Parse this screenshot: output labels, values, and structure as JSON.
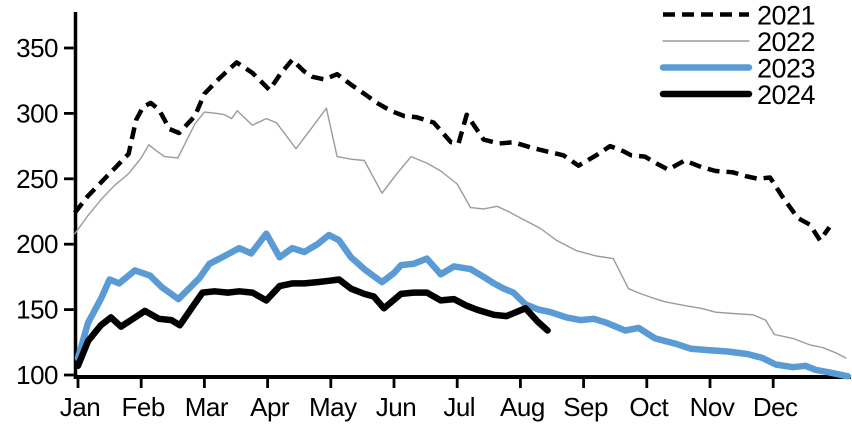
{
  "chart_data": {
    "type": "line",
    "title": "",
    "xlabel": "",
    "ylabel": "",
    "grid": false,
    "x_axis": {
      "unit": "month offset from Jan tick",
      "categories": [
        "Jan",
        "Feb",
        "Mar",
        "Apr",
        "May",
        "Jun",
        "Jul",
        "Aug",
        "Sep",
        "Oct",
        "Nov",
        "Dec"
      ]
    },
    "y_axis": {
      "ticks": [
        350,
        300,
        250,
        200,
        150,
        100
      ],
      "range": [
        100,
        375
      ]
    },
    "legend": {
      "position": "top-right"
    },
    "series": [
      {
        "name": "2021",
        "color": "#000000",
        "style": "dashed",
        "width": 4.5,
        "dash": "12 7",
        "points": [
          [
            -0.05,
            224
          ],
          [
            0.16,
            237
          ],
          [
            0.38,
            248
          ],
          [
            0.58,
            258
          ],
          [
            0.8,
            269
          ],
          [
            0.92,
            295
          ],
          [
            1.03,
            305
          ],
          [
            1.15,
            308
          ],
          [
            1.28,
            303
          ],
          [
            1.45,
            288
          ],
          [
            1.6,
            285
          ],
          [
            1.85,
            298
          ],
          [
            2.0,
            315
          ],
          [
            2.24,
            327
          ],
          [
            2.51,
            339
          ],
          [
            2.76,
            331
          ],
          [
            3.03,
            318
          ],
          [
            3.2,
            330
          ],
          [
            3.39,
            341
          ],
          [
            3.58,
            332
          ],
          [
            3.71,
            328
          ],
          [
            3.9,
            326
          ],
          [
            4.1,
            330
          ],
          [
            4.32,
            322
          ],
          [
            4.53,
            315
          ],
          [
            4.73,
            308
          ],
          [
            4.95,
            302
          ],
          [
            5.16,
            298
          ],
          [
            5.36,
            297
          ],
          [
            5.63,
            293
          ],
          [
            5.9,
            278
          ],
          [
            6.02,
            277
          ],
          [
            6.15,
            299
          ],
          [
            6.42,
            280
          ],
          [
            6.66,
            277
          ],
          [
            6.89,
            278
          ],
          [
            7.16,
            274
          ],
          [
            7.41,
            271
          ],
          [
            7.68,
            268
          ],
          [
            7.92,
            260
          ],
          [
            8.2,
            268
          ],
          [
            8.42,
            275
          ],
          [
            8.63,
            271
          ],
          [
            8.75,
            268
          ],
          [
            8.97,
            267
          ],
          [
            9.18,
            261
          ],
          [
            9.34,
            257
          ],
          [
            9.6,
            264
          ],
          [
            9.86,
            259
          ],
          [
            10.09,
            256
          ],
          [
            10.36,
            255
          ],
          [
            10.57,
            252
          ],
          [
            10.76,
            250
          ],
          [
            10.95,
            251
          ],
          [
            11.15,
            236
          ],
          [
            11.39,
            220
          ],
          [
            11.58,
            215
          ],
          [
            11.74,
            203
          ],
          [
            11.89,
            213
          ]
        ]
      },
      {
        "name": "2022",
        "color": "#9b9b9b",
        "style": "solid",
        "width": 1.4,
        "dash": null,
        "points": [
          [
            -0.05,
            208
          ],
          [
            0.16,
            222
          ],
          [
            0.38,
            235
          ],
          [
            0.58,
            245
          ],
          [
            0.8,
            254
          ],
          [
            1.0,
            266
          ],
          [
            1.12,
            276
          ],
          [
            1.25,
            271
          ],
          [
            1.37,
            267
          ],
          [
            1.58,
            266
          ],
          [
            1.85,
            292
          ],
          [
            2.0,
            301
          ],
          [
            2.2,
            300
          ],
          [
            2.32,
            299
          ],
          [
            2.43,
            296
          ],
          [
            2.52,
            302
          ],
          [
            2.76,
            291
          ],
          [
            2.98,
            296
          ],
          [
            3.14,
            293
          ],
          [
            3.45,
            273
          ],
          [
            3.7,
            289
          ],
          [
            3.93,
            304
          ],
          [
            4.1,
            267
          ],
          [
            4.32,
            265
          ],
          [
            4.53,
            264
          ],
          [
            4.81,
            239
          ],
          [
            5.03,
            253
          ],
          [
            5.27,
            267
          ],
          [
            5.52,
            262
          ],
          [
            5.74,
            256
          ],
          [
            6.0,
            246
          ],
          [
            6.21,
            228
          ],
          [
            6.42,
            227
          ],
          [
            6.63,
            229
          ],
          [
            6.81,
            225
          ],
          [
            7.0,
            220
          ],
          [
            7.32,
            212
          ],
          [
            7.57,
            203
          ],
          [
            7.89,
            195
          ],
          [
            8.2,
            191
          ],
          [
            8.47,
            189
          ],
          [
            8.71,
            166
          ],
          [
            8.91,
            162
          ],
          [
            9.15,
            158
          ],
          [
            9.29,
            156
          ],
          [
            9.61,
            153
          ],
          [
            9.86,
            151
          ],
          [
            10.09,
            148
          ],
          [
            10.36,
            147
          ],
          [
            10.68,
            146
          ],
          [
            10.88,
            142
          ],
          [
            11.02,
            131
          ],
          [
            11.31,
            128
          ],
          [
            11.58,
            123
          ],
          [
            11.78,
            121
          ],
          [
            11.99,
            117
          ],
          [
            12.15,
            113
          ]
        ]
      },
      {
        "name": "2023",
        "color": "#5B9BD5",
        "style": "solid",
        "width": 6.5,
        "dash": null,
        "points": [
          [
            0.0,
            113
          ],
          [
            0.16,
            140
          ],
          [
            0.36,
            158
          ],
          [
            0.5,
            173
          ],
          [
            0.65,
            170
          ],
          [
            0.9,
            180
          ],
          [
            1.14,
            176
          ],
          [
            1.33,
            167
          ],
          [
            1.59,
            158
          ],
          [
            1.92,
            174
          ],
          [
            2.08,
            185
          ],
          [
            2.32,
            191
          ],
          [
            2.55,
            197
          ],
          [
            2.74,
            193
          ],
          [
            2.98,
            208
          ],
          [
            3.19,
            190
          ],
          [
            3.39,
            197
          ],
          [
            3.58,
            194
          ],
          [
            3.79,
            200
          ],
          [
            3.97,
            207
          ],
          [
            4.13,
            203
          ],
          [
            4.32,
            190
          ],
          [
            4.53,
            181
          ],
          [
            4.64,
            177
          ],
          [
            4.81,
            171
          ],
          [
            5.0,
            178
          ],
          [
            5.11,
            184
          ],
          [
            5.31,
            185
          ],
          [
            5.52,
            189
          ],
          [
            5.74,
            177
          ],
          [
            5.95,
            183
          ],
          [
            6.21,
            181
          ],
          [
            6.42,
            175
          ],
          [
            6.58,
            170
          ],
          [
            6.74,
            166
          ],
          [
            6.89,
            163
          ],
          [
            7.08,
            154
          ],
          [
            7.29,
            150
          ],
          [
            7.48,
            148
          ],
          [
            7.73,
            144
          ],
          [
            7.95,
            142
          ],
          [
            8.16,
            143
          ],
          [
            8.36,
            140
          ],
          [
            8.66,
            134
          ],
          [
            8.87,
            136
          ],
          [
            9.13,
            128
          ],
          [
            9.45,
            124
          ],
          [
            9.7,
            120
          ],
          [
            9.97,
            119
          ],
          [
            10.28,
            118
          ],
          [
            10.6,
            116
          ],
          [
            10.83,
            113
          ],
          [
            11.04,
            108
          ],
          [
            11.31,
            106
          ],
          [
            11.51,
            107
          ],
          [
            11.67,
            104
          ],
          [
            11.89,
            102
          ],
          [
            12.18,
            99
          ]
        ]
      },
      {
        "name": "2024",
        "color": "#000000",
        "style": "solid",
        "width": 6.5,
        "dash": null,
        "points": [
          [
            0.0,
            107
          ],
          [
            0.16,
            126
          ],
          [
            0.36,
            138
          ],
          [
            0.52,
            144
          ],
          [
            0.68,
            137
          ],
          [
            0.87,
            143
          ],
          [
            1.06,
            149
          ],
          [
            1.28,
            143
          ],
          [
            1.48,
            142
          ],
          [
            1.61,
            138
          ],
          [
            1.81,
            152
          ],
          [
            1.97,
            163
          ],
          [
            2.16,
            164
          ],
          [
            2.37,
            163
          ],
          [
            2.55,
            164
          ],
          [
            2.76,
            163
          ],
          [
            2.98,
            157
          ],
          [
            3.19,
            168
          ],
          [
            3.39,
            170
          ],
          [
            3.58,
            170
          ],
          [
            3.79,
            171
          ],
          [
            3.97,
            172
          ],
          [
            4.13,
            173
          ],
          [
            4.32,
            166
          ],
          [
            4.53,
            162
          ],
          [
            4.68,
            160
          ],
          [
            4.84,
            151
          ],
          [
            5.11,
            162
          ],
          [
            5.31,
            163
          ],
          [
            5.52,
            163
          ],
          [
            5.74,
            157
          ],
          [
            5.95,
            158
          ],
          [
            6.15,
            153
          ],
          [
            6.31,
            150
          ],
          [
            6.58,
            146
          ],
          [
            6.78,
            145
          ],
          [
            7.08,
            151
          ],
          [
            7.27,
            141
          ],
          [
            7.43,
            134
          ]
        ]
      }
    ]
  }
}
